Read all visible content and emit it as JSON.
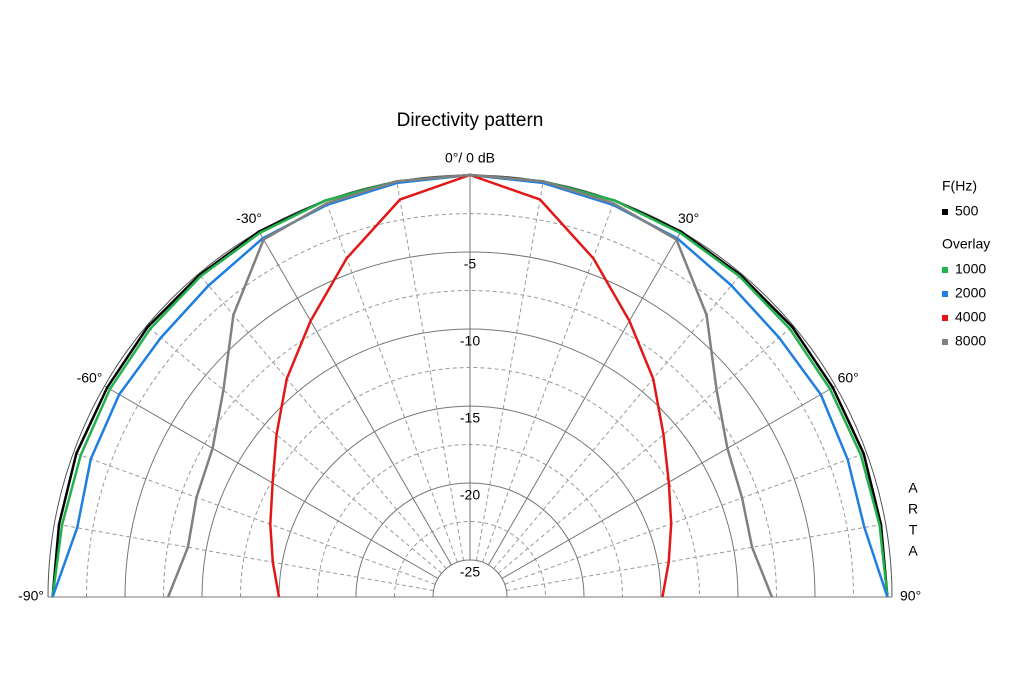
{
  "chart_data": {
    "type": "polar",
    "title": "Directivity pattern",
    "angles": [
      -90,
      -80,
      -70,
      -60,
      -50,
      -40,
      -30,
      -20,
      -10,
      0,
      10,
      20,
      30,
      40,
      50,
      60,
      70,
      80,
      90
    ],
    "angle_ticks": [
      {
        "value": -90,
        "label": "-90°"
      },
      {
        "value": -60,
        "label": "-60°"
      },
      {
        "value": -30,
        "label": "-30°"
      },
      {
        "value": 0,
        "label": "0°/ 0 dB"
      },
      {
        "value": 30,
        "label": "30°"
      },
      {
        "value": 60,
        "label": "60°"
      },
      {
        "value": 90,
        "label": "90°"
      }
    ],
    "rlim": [
      -25,
      0
    ],
    "rticks": [
      -5,
      -10,
      -15,
      -20,
      -25
    ],
    "legend_title": "F(Hz)",
    "overlay_title": "Overlay",
    "watermark": "ARTA",
    "series": [
      {
        "name": "500",
        "color": "#000000",
        "values": [
          -0.3,
          -0.3,
          -0.2,
          -0.2,
          -0.1,
          -0.1,
          0,
          0,
          0,
          0,
          0,
          0,
          0,
          -0.1,
          -0.1,
          -0.2,
          -0.2,
          -0.3,
          -0.3
        ]
      },
      {
        "name": "1000",
        "color": "#22b14c",
        "values": [
          -0.3,
          -0.5,
          -0.5,
          -0.4,
          -0.3,
          -0.2,
          -0.1,
          0,
          0,
          0,
          0,
          0,
          -0.1,
          -0.2,
          -0.3,
          -0.4,
          -0.4,
          -0.4,
          -0.3
        ]
      },
      {
        "name": "2000",
        "color": "#1e7fe0",
        "values": [
          -0.3,
          -1.5,
          -1.2,
          -1.1,
          -1.2,
          -1.0,
          -0.5,
          -0.3,
          -0.1,
          0,
          -0.1,
          -0.3,
          -0.5,
          -1.0,
          -1.2,
          -1.1,
          -1.3,
          -1.4,
          -0.3
        ]
      },
      {
        "name": "4000",
        "color": "#e21818",
        "values": [
          -15,
          -14.4,
          -13.6,
          -12.6,
          -11,
          -8.9,
          -6.7,
          -4,
          -1.2,
          0,
          -1.2,
          -4,
          -6.7,
          -8.9,
          -11,
          -12.5,
          -13.5,
          -14.3,
          -14.9
        ]
      },
      {
        "name": "8000",
        "color": "#808080",
        "values": [
          -7.8,
          -8.8,
          -8.5,
          -8.1,
          -6.5,
          -3.5,
          -0.6,
          -0.2,
          0,
          0,
          0,
          -0.2,
          -0.6,
          -3.5,
          -6.5,
          -8.1,
          -8.6,
          -8.8,
          -7.8
        ]
      }
    ]
  }
}
